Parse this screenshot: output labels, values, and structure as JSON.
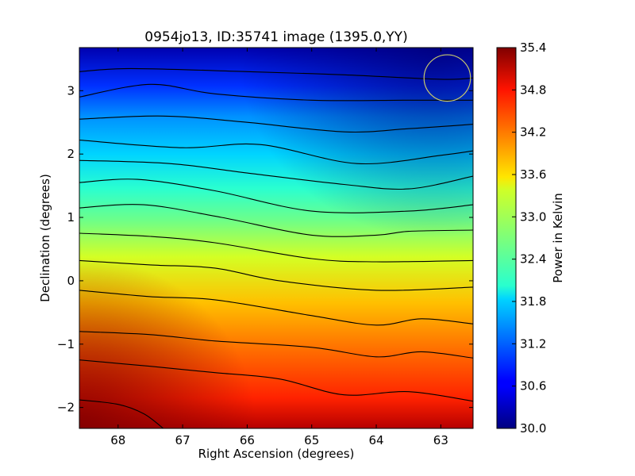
{
  "chart_data": {
    "type": "heatmap",
    "title": "0954jo13, ID:35741 image (1395.0,YY)",
    "xlabel": "Right Ascension (degrees)",
    "ylabel": "Declination (degrees)",
    "xlim": [
      68.6,
      62.5
    ],
    "ylim": [
      -2.33,
      3.68
    ],
    "x_ticks": [
      68,
      67,
      66,
      65,
      64,
      63
    ],
    "x_tick_labels": [
      "68",
      "67",
      "66",
      "65",
      "64",
      "63"
    ],
    "y_ticks": [
      -2,
      -1,
      0,
      1,
      2,
      3
    ],
    "y_tick_labels": [
      "−2",
      "−1",
      "0",
      "1",
      "2",
      "3"
    ],
    "grid": false,
    "colormap": "jet",
    "colorbar": {
      "label": "Power in Kelvin",
      "range": [
        30.0,
        35.4
      ],
      "ticks": [
        30.0,
        30.6,
        31.2,
        31.8,
        32.4,
        33.0,
        33.6,
        34.2,
        34.8,
        35.4
      ],
      "tick_labels": [
        "30.0",
        "30.6",
        "31.2",
        "31.8",
        "32.4",
        "33.0",
        "33.6",
        "34.2",
        "34.8",
        "35.4"
      ]
    },
    "field": {
      "description_free": true,
      "min_value": 30.0,
      "max_value": 35.4,
      "gradient": "temperature decreases roughly linearly with declination"
    },
    "contours": {
      "color": "#000000",
      "levels": [
        {
          "dec_at_ra": [
            [
              68.6,
              3.3
            ],
            [
              67.8,
              3.35
            ],
            [
              66.0,
              3.3
            ],
            [
              64.5,
              3.25
            ],
            [
              63.0,
              3.18
            ],
            [
              62.5,
              3.2
            ]
          ]
        },
        {
          "dec_at_ra": [
            [
              68.6,
              2.9
            ],
            [
              67.5,
              3.1
            ],
            [
              66.5,
              2.95
            ],
            [
              65.0,
              2.85
            ],
            [
              63.5,
              2.85
            ],
            [
              62.5,
              2.85
            ]
          ]
        },
        {
          "dec_at_ra": [
            [
              68.6,
              2.55
            ],
            [
              67.3,
              2.6
            ],
            [
              66.0,
              2.5
            ],
            [
              64.5,
              2.35
            ],
            [
              63.5,
              2.4
            ],
            [
              62.5,
              2.47
            ]
          ]
        },
        {
          "dec_at_ra": [
            [
              68.6,
              2.22
            ],
            [
              67.0,
              2.1
            ],
            [
              65.8,
              2.15
            ],
            [
              64.3,
              1.85
            ],
            [
              63.0,
              1.98
            ],
            [
              62.5,
              2.05
            ]
          ]
        },
        {
          "dec_at_ra": [
            [
              68.6,
              1.9
            ],
            [
              67.2,
              1.85
            ],
            [
              66.0,
              1.7
            ],
            [
              64.5,
              1.52
            ],
            [
              63.5,
              1.45
            ],
            [
              62.5,
              1.65
            ]
          ]
        },
        {
          "dec_at_ra": [
            [
              68.6,
              1.55
            ],
            [
              67.7,
              1.6
            ],
            [
              66.5,
              1.42
            ],
            [
              65.0,
              1.1
            ],
            [
              63.5,
              1.1
            ],
            [
              62.5,
              1.2
            ]
          ]
        },
        {
          "dec_at_ra": [
            [
              68.6,
              1.15
            ],
            [
              67.6,
              1.2
            ],
            [
              66.4,
              1.0
            ],
            [
              65.0,
              0.72
            ],
            [
              64.0,
              0.72
            ],
            [
              63.5,
              0.78
            ],
            [
              62.5,
              0.8
            ]
          ]
        },
        {
          "dec_at_ra": [
            [
              68.6,
              0.75
            ],
            [
              67.5,
              0.7
            ],
            [
              66.5,
              0.6
            ],
            [
              65.0,
              0.35
            ],
            [
              64.0,
              0.3
            ],
            [
              62.5,
              0.32
            ]
          ]
        },
        {
          "dec_at_ra": [
            [
              68.6,
              0.32
            ],
            [
              67.5,
              0.25
            ],
            [
              66.5,
              0.2
            ],
            [
              65.5,
              0.0
            ],
            [
              64.0,
              -0.15
            ],
            [
              62.5,
              -0.1
            ]
          ]
        },
        {
          "dec_at_ra": [
            [
              68.6,
              -0.15
            ],
            [
              67.5,
              -0.25
            ],
            [
              66.5,
              -0.3
            ],
            [
              65.0,
              -0.55
            ],
            [
              64.0,
              -0.7
            ],
            [
              63.3,
              -0.6
            ],
            [
              62.5,
              -0.68
            ]
          ]
        },
        {
          "dec_at_ra": [
            [
              68.6,
              -0.8
            ],
            [
              67.5,
              -0.85
            ],
            [
              66.5,
              -0.95
            ],
            [
              65.0,
              -1.05
            ],
            [
              64.0,
              -1.2
            ],
            [
              63.3,
              -1.12
            ],
            [
              62.5,
              -1.22
            ]
          ]
        },
        {
          "dec_at_ra": [
            [
              68.6,
              -1.25
            ],
            [
              67.5,
              -1.35
            ],
            [
              66.5,
              -1.45
            ],
            [
              65.5,
              -1.55
            ],
            [
              64.5,
              -1.8
            ],
            [
              63.5,
              -1.75
            ],
            [
              62.5,
              -1.9
            ]
          ]
        },
        {
          "dec_at_ra": [
            [
              68.6,
              -1.88
            ],
            [
              68.0,
              -1.95
            ],
            [
              67.6,
              -2.1
            ],
            [
              67.3,
              -2.33
            ]
          ]
        }
      ]
    },
    "annotations": [
      {
        "type": "circle",
        "center_ra": 62.9,
        "center_dec": 3.2,
        "radius_deg": 0.36,
        "color": "#c8c86e"
      }
    ]
  }
}
